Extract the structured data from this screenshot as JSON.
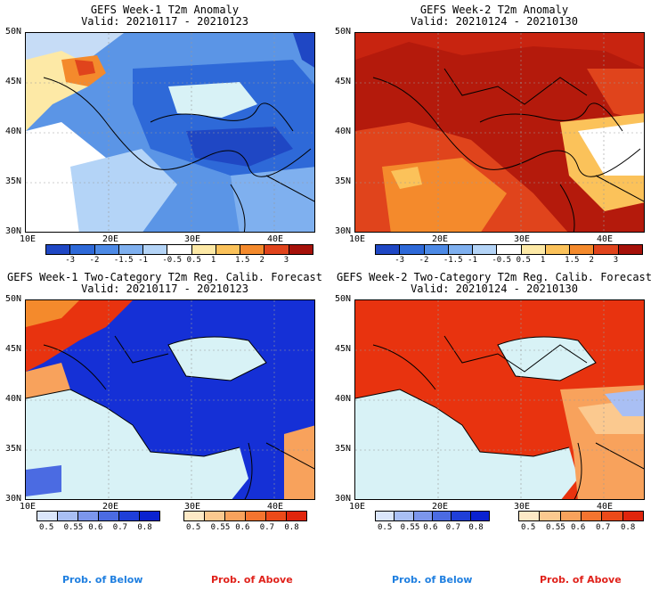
{
  "panels": [
    {
      "title": "GEFS Week-1 T2m Anomaly",
      "valid": "Valid: 20210117 - 20210123"
    },
    {
      "title": "GEFS Week-2 T2m Anomaly",
      "valid": "Valid: 20210124 - 20210130"
    },
    {
      "title": "GEFS Week-1 Two-Category T2m Reg. Calib. Forecast",
      "valid": "Valid: 20210117 - 20210123"
    },
    {
      "title": "GEFS Week-2 Two-Category T2m Reg. Calib. Forecast",
      "valid": "Valid: 20210124 - 20210130"
    }
  ],
  "lat_labels": [
    "50N",
    "45N",
    "40N",
    "35N",
    "30N"
  ],
  "lon_labels": [
    "10E",
    "20E",
    "30E",
    "40E"
  ],
  "anomaly_scale": {
    "labels": [
      "-3",
      "-2",
      "-1.5",
      "-1",
      "-0.5",
      "0.5",
      "1",
      "1.5",
      "2",
      "3"
    ],
    "colors": [
      "#1f47c4",
      "#2e69d8",
      "#4d8ae6",
      "#7fb0ef",
      "#b4d4f7",
      "#ffffff",
      "#fde9a6",
      "#fbc25a",
      "#f48a2c",
      "#e0441c",
      "#a6110a"
    ]
  },
  "prob_below_scale": {
    "labels": [
      "0.5",
      "0.55",
      "0.6",
      "0.7",
      "0.8"
    ],
    "colors": [
      "#dbe6fb",
      "#a9bff4",
      "#7c96ec",
      "#4b6be2",
      "#1f3fd8",
      "#0a22d0"
    ]
  },
  "prob_above_scale": {
    "labels": [
      "0.5",
      "0.55",
      "0.6",
      "0.7",
      "0.8"
    ],
    "colors": [
      "#fde9c6",
      "#fbc98f",
      "#f8a25c",
      "#f4742f",
      "#ec4a19",
      "#e0250c"
    ]
  },
  "legend": {
    "below": "Prob. of Below",
    "above": "Prob. of Above",
    "below_color": "#1f7fe0",
    "above_color": "#e0221b"
  },
  "colors": {
    "sea_light": "#d8f2f6",
    "above_fill": "#e8330f",
    "below_fill": "#1530d6",
    "week2_anom": "#b41a0c"
  }
}
